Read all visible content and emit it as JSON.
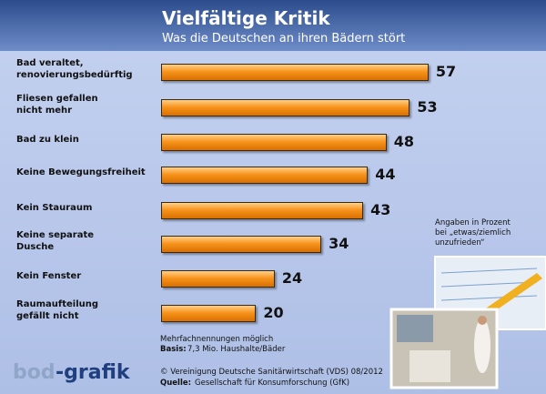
{
  "chart_data": {
    "type": "bar",
    "title": "Vielfältige Kritik",
    "subtitle": "Was die Deutschen an ihren Bädern stört",
    "categories": [
      "Bad veraltet,\nrenovierungsbedürftig",
      "Fliesen gefallen\nnicht mehr",
      "Bad zu klein",
      "Keine Bewegungsfreiheit",
      "Kein Stauraum",
      "Keine separate\nDusche",
      "Kein Fenster",
      "Raumaufteilung\ngefällt nicht"
    ],
    "values": [
      57,
      53,
      48,
      44,
      43,
      34,
      24,
      20
    ],
    "color": "#f7941d",
    "note": "Angaben in Prozent\nbei „etwas/ziemlich\nunzufrieden“",
    "footnote": "Mehrfachnennungen möglich",
    "base_label": "Basis:",
    "base_text": "7,3 Mio. Haushalte/Bäder",
    "copyright": "© Vereinigung Deutsche Sanitärwirtschaft (VDS)  08/2012",
    "source_label": "Quelle:",
    "source_text": "Gesellschaft für Konsumforschung (GfK)",
    "logo": [
      "bod",
      "-grafik"
    ]
  }
}
